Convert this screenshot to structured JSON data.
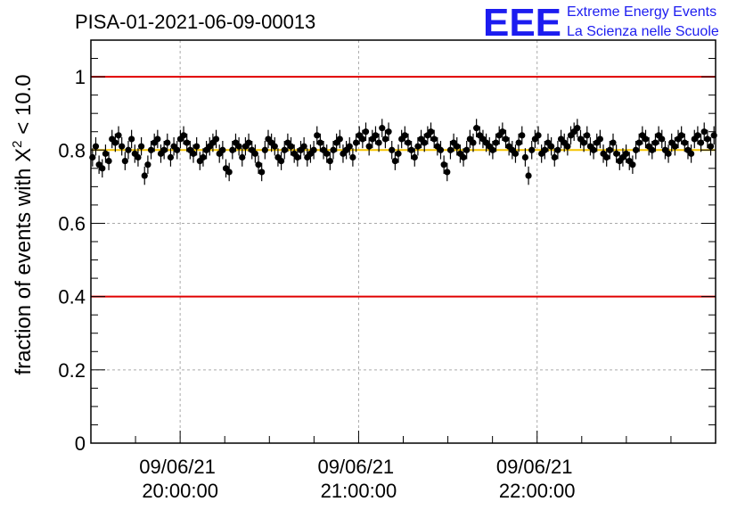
{
  "chart_data": {
    "type": "scatter",
    "title": "PISA-01-2021-06-09-00013",
    "ylabel_prefix": "fraction of events with X",
    "ylabel_sup": "2",
    "ylabel_suffix": " < 10.0",
    "xlabel": "",
    "ylim": [
      0,
      1.1
    ],
    "xlim": [
      "2021-06-09 19:30:00",
      "2021-06-09 23:00:00"
    ],
    "x_ticks": [
      {
        "date": "09/06/21",
        "time": "20:00:00"
      },
      {
        "date": "09/06/21",
        "time": "21:00:00"
      },
      {
        "date": "09/06/21",
        "time": "22:00:00"
      }
    ],
    "y_tick_labels": [
      "0",
      "0.2",
      "0.4",
      "0.6",
      "0.8",
      "1"
    ],
    "grid": true,
    "reference_lines": [
      {
        "y": 1.0,
        "color": "#e00000"
      },
      {
        "y": 0.4,
        "color": "#e00000"
      },
      {
        "y": 0.8,
        "color": "#f5c400"
      }
    ],
    "series": [
      {
        "marker_color": "#000000",
        "x_start": "2021-06-09 19:30:00",
        "x_end": "2021-06-09 23:00:00",
        "error": 0.025,
        "values": [
          0.78,
          0.81,
          0.76,
          0.75,
          0.79,
          0.77,
          0.83,
          0.82,
          0.84,
          0.81,
          0.77,
          0.8,
          0.83,
          0.79,
          0.78,
          0.81,
          0.73,
          0.76,
          0.8,
          0.82,
          0.83,
          0.79,
          0.8,
          0.82,
          0.78,
          0.81,
          0.8,
          0.83,
          0.84,
          0.82,
          0.8,
          0.79,
          0.81,
          0.77,
          0.78,
          0.8,
          0.81,
          0.82,
          0.83,
          0.79,
          0.8,
          0.75,
          0.74,
          0.8,
          0.82,
          0.81,
          0.78,
          0.81,
          0.82,
          0.8,
          0.79,
          0.76,
          0.74,
          0.8,
          0.83,
          0.82,
          0.81,
          0.78,
          0.77,
          0.8,
          0.82,
          0.81,
          0.79,
          0.78,
          0.8,
          0.81,
          0.78,
          0.79,
          0.8,
          0.84,
          0.82,
          0.8,
          0.79,
          0.77,
          0.8,
          0.82,
          0.83,
          0.79,
          0.8,
          0.81,
          0.78,
          0.82,
          0.84,
          0.83,
          0.85,
          0.81,
          0.83,
          0.84,
          0.82,
          0.86,
          0.83,
          0.85,
          0.8,
          0.77,
          0.79,
          0.83,
          0.84,
          0.82,
          0.8,
          0.78,
          0.81,
          0.83,
          0.82,
          0.84,
          0.85,
          0.83,
          0.81,
          0.8,
          0.76,
          0.74,
          0.8,
          0.82,
          0.81,
          0.79,
          0.78,
          0.8,
          0.83,
          0.82,
          0.86,
          0.84,
          0.83,
          0.82,
          0.81,
          0.8,
          0.82,
          0.84,
          0.85,
          0.83,
          0.81,
          0.8,
          0.79,
          0.82,
          0.84,
          0.78,
          0.73,
          0.8,
          0.83,
          0.84,
          0.79,
          0.8,
          0.82,
          0.81,
          0.78,
          0.8,
          0.83,
          0.82,
          0.81,
          0.84,
          0.85,
          0.86,
          0.83,
          0.82,
          0.84,
          0.81,
          0.8,
          0.82,
          0.83,
          0.79,
          0.78,
          0.8,
          0.82,
          0.79,
          0.77,
          0.78,
          0.79,
          0.77,
          0.76,
          0.8,
          0.82,
          0.84,
          0.83,
          0.81,
          0.8,
          0.82,
          0.84,
          0.83,
          0.8,
          0.79,
          0.82,
          0.81,
          0.83,
          0.84,
          0.82,
          0.8,
          0.79,
          0.83,
          0.84,
          0.82,
          0.85,
          0.83,
          0.81,
          0.84
        ]
      }
    ]
  },
  "logo": {
    "letters": "EEE",
    "line1": "Extreme Energy Events",
    "line2": "La Scienza nelle Scuole"
  }
}
